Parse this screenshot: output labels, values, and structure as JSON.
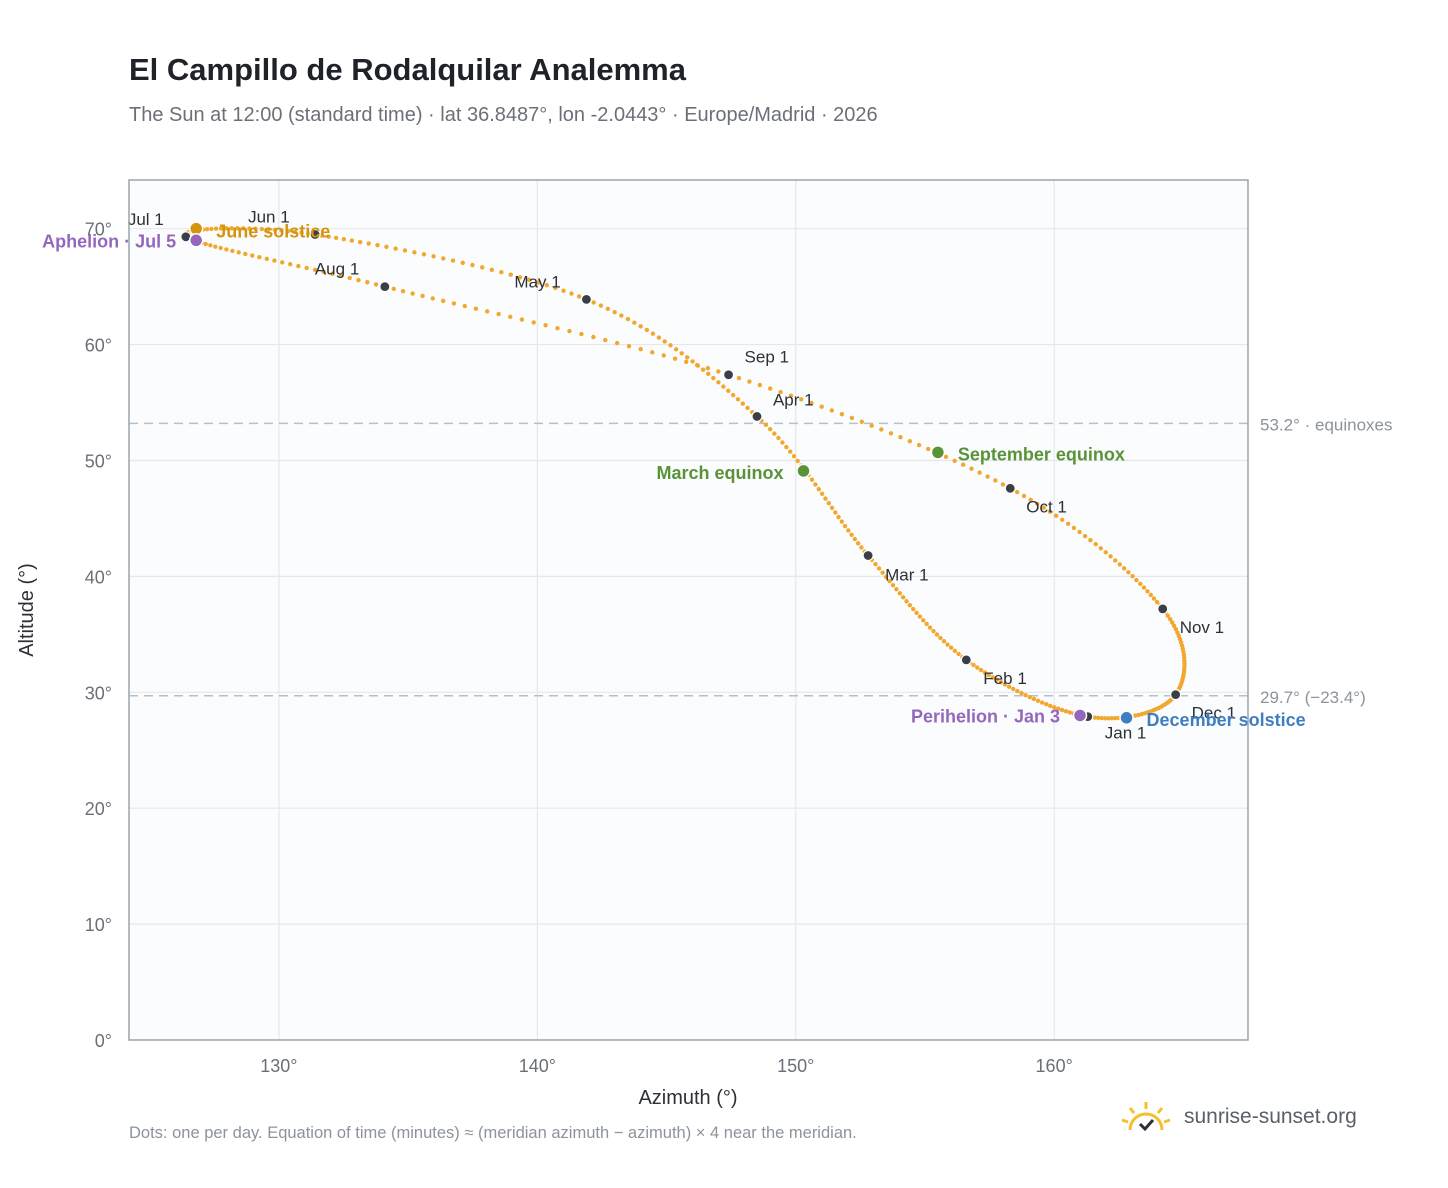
{
  "header": {
    "title": "El Campillo de Rodalquilar Analemma",
    "subtitle": "The Sun at 12:00 (standard time) · lat 36.8487°, lon -2.0443° · Europe/Madrid · 2026"
  },
  "footer": {
    "note": "Dots: one per day. Equation of time (minutes) ≈ (meridian azimuth − azimuth) × 4 near the meridian.",
    "brand": "sunrise-sunset.org",
    "brand_icon": "sun-logo-icon"
  },
  "colors": {
    "curve": "#f2a72e",
    "month_dot": "#3a3f47",
    "solstice_june": "#d4940f",
    "solstice_december": "#3f7fc1",
    "equinox": "#5a9237",
    "apsis": "#9467bd",
    "reference_line": "#b7c0c9",
    "plot_bg": "#fbfcfd",
    "grid": "#e4e8ec",
    "frame": "#9aa3ae"
  },
  "chart_data": {
    "type": "scatter",
    "xlabel": "Azimuth (°)",
    "ylabel": "Altitude (°)",
    "xlim": [
      124.2,
      167.5
    ],
    "ylim": [
      0,
      74.2
    ],
    "xticks": [
      "130°",
      "140°",
      "150°",
      "160°"
    ],
    "xtick_values": [
      130,
      140,
      150,
      160
    ],
    "yticks": [
      "0°",
      "10°",
      "20°",
      "30°",
      "40°",
      "50°",
      "60°",
      "70°"
    ],
    "ytick_values": [
      0,
      10,
      20,
      30,
      40,
      50,
      60,
      70
    ],
    "grid": true,
    "month_points": [
      {
        "label": "Jan 1",
        "az": 161.3,
        "alt": 27.9
      },
      {
        "label": "Feb 1",
        "az": 156.6,
        "alt": 32.8
      },
      {
        "label": "Mar 1",
        "az": 152.8,
        "alt": 41.8
      },
      {
        "label": "Apr 1",
        "az": 148.5,
        "alt": 53.8
      },
      {
        "label": "May 1",
        "az": 141.9,
        "alt": 63.9
      },
      {
        "label": "Jun 1",
        "az": 131.4,
        "alt": 69.5
      },
      {
        "label": "Jul 1",
        "az": 126.4,
        "alt": 69.3
      },
      {
        "label": "Aug 1",
        "az": 134.1,
        "alt": 65.0
      },
      {
        "label": "Sep 1",
        "az": 147.4,
        "alt": 57.4
      },
      {
        "label": "Oct 1",
        "az": 158.3,
        "alt": 47.6
      },
      {
        "label": "Nov 1",
        "az": 164.2,
        "alt": 37.2
      },
      {
        "label": "Dec 1",
        "az": 164.7,
        "alt": 29.8
      }
    ],
    "events": [
      {
        "label": "June solstice",
        "az": 126.8,
        "alt": 70.0,
        "kind": "solstice_june"
      },
      {
        "label": "December solstice",
        "az": 162.8,
        "alt": 27.8,
        "kind": "solstice_december"
      },
      {
        "label": "March equinox",
        "az": 150.3,
        "alt": 49.1,
        "kind": "equinox"
      },
      {
        "label": "September equinox",
        "az": 155.5,
        "alt": 50.7,
        "kind": "equinox"
      },
      {
        "label": "Aphelion · Jul 5",
        "az": 126.8,
        "alt": 69.0,
        "kind": "apsis"
      },
      {
        "label": "Perihelion · Jan 3",
        "az": 161.0,
        "alt": 28.0,
        "kind": "apsis"
      }
    ],
    "reference_lines": [
      {
        "alt": 53.2,
        "label": "53.2° · equinoxes"
      },
      {
        "alt": 29.7,
        "label": "29.7° (−23.4°)"
      }
    ]
  }
}
